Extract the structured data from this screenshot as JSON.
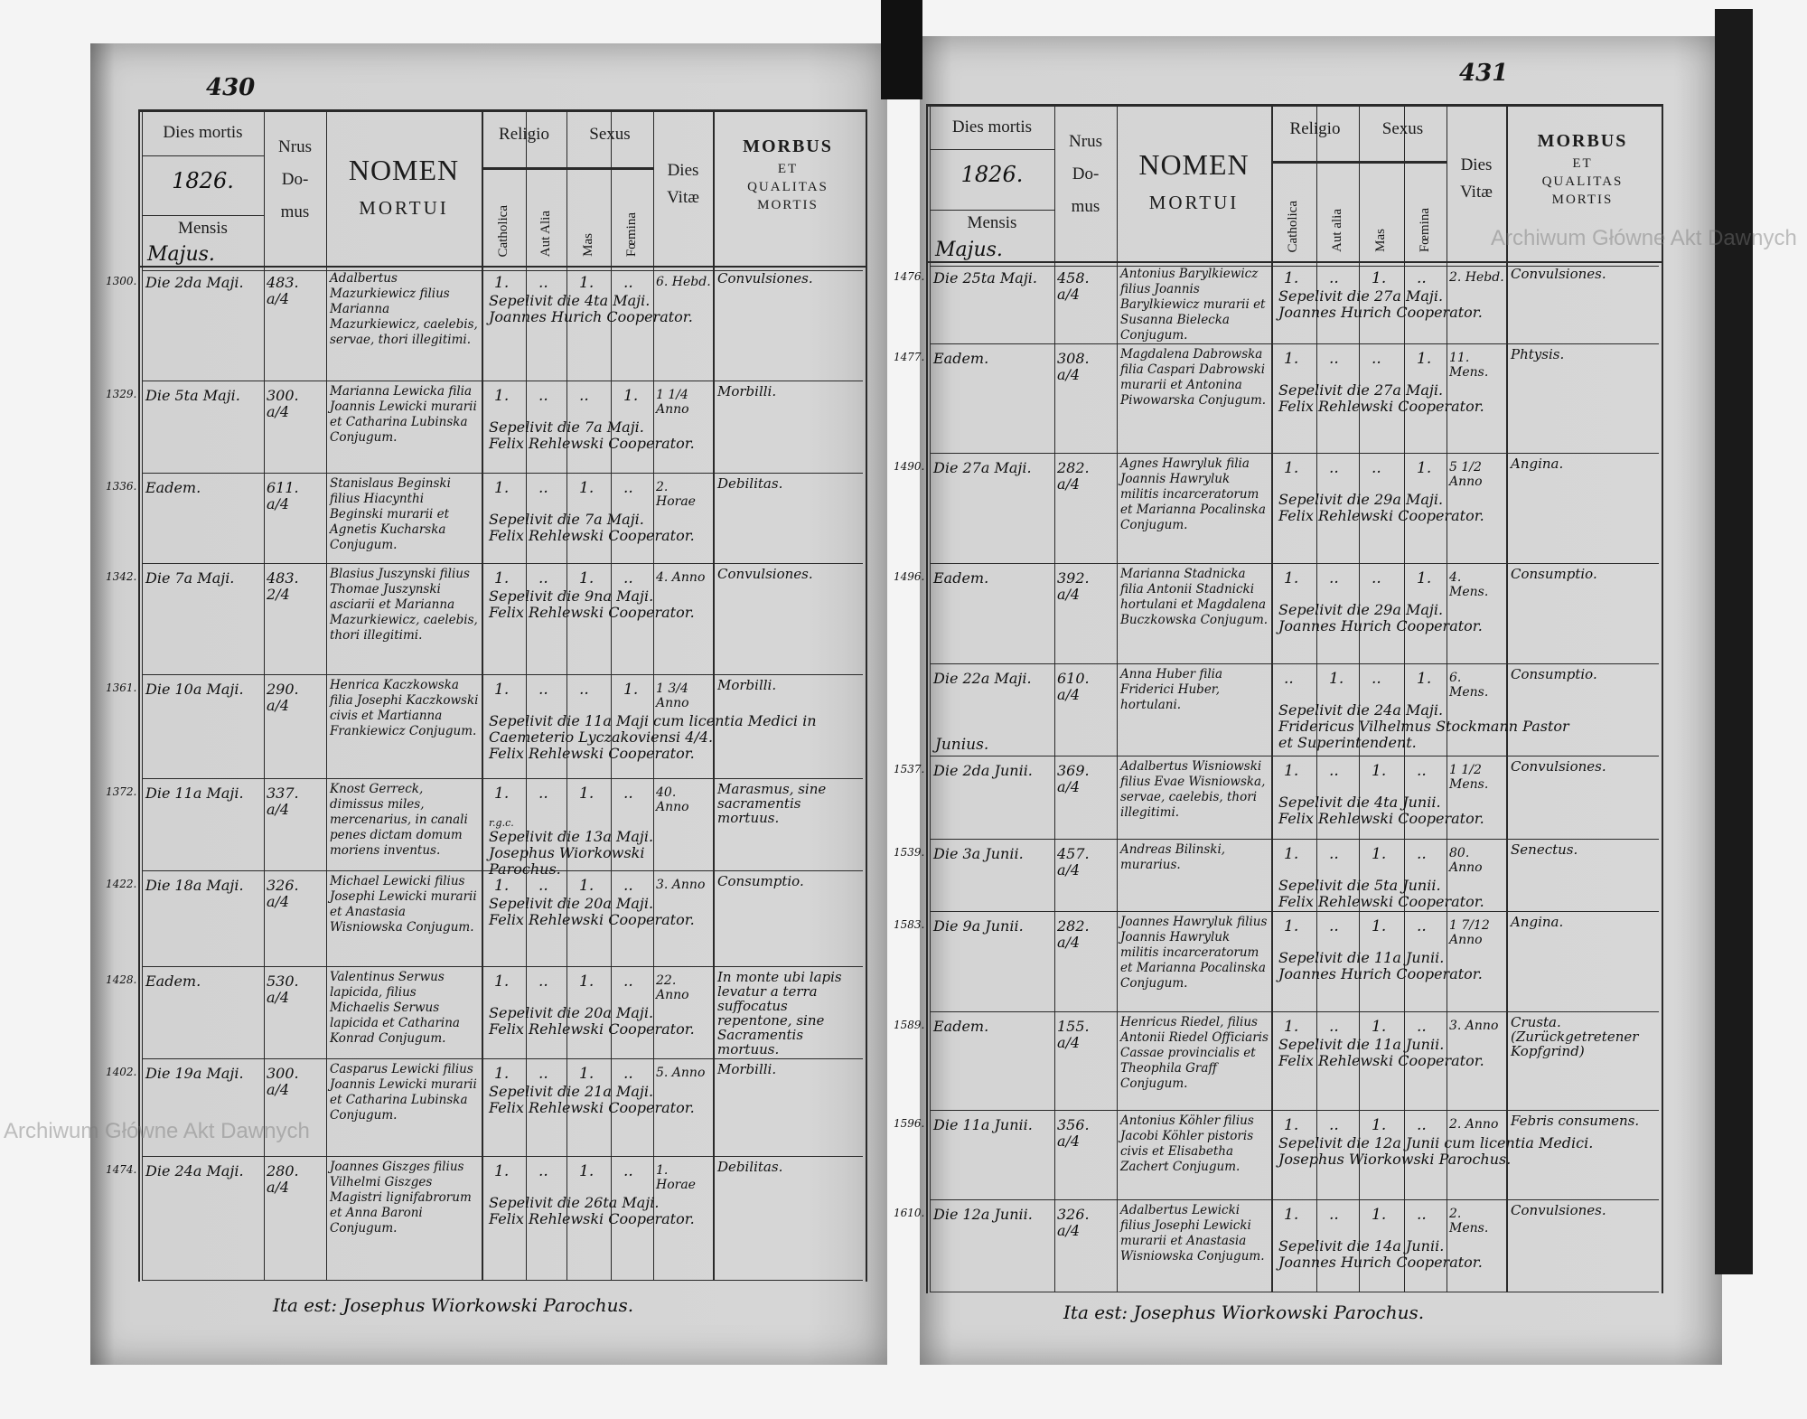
{
  "watermark": "Archiwum Główne Akt Dawnych",
  "pages": {
    "left": {
      "page_number": "430",
      "header": {
        "dies_mortis": "Dies mortis",
        "year": "1826.",
        "mensis": "Mensis",
        "month": "Majus.",
        "nrus": "Nrus",
        "do": "Do-",
        "mus": "mus",
        "nomen": "NOMEN",
        "mortui": "MORTUI",
        "religio": "Religio",
        "catholica": "Catholica",
        "aut_alia": "Aut Alia",
        "sexus": "Sexus",
        "mas": "Mas",
        "foemina": "Fœmina",
        "dies": "Dies",
        "vitae": "Vitæ",
        "morbus": "MORBUS",
        "et": "ET",
        "qualitas": "QUALITAS",
        "mortis": "MORTIS"
      },
      "entries": [
        {
          "num": "1300.",
          "date": "Die 2da Maji.",
          "domus": "483. a/4",
          "name": "Adalbertus Mazurkiewicz filius Marianna Mazurkiewicz, caelebis, servae, thori illegitimi.",
          "catholica": "1.",
          "aut_alia": "..",
          "mas": "1.",
          "foemina": "..",
          "vitae": "6. Hebd.",
          "morbus": "Convulsiones.",
          "burial": [
            "Sepelivit die 4ta Maji.",
            "Joannes Hurich Cooperator."
          ]
        },
        {
          "num": "1329.",
          "date": "Die 5ta Maji.",
          "domus": "300. a/4",
          "name": "Marianna Lewicka filia Joannis Lewicki murarii et Catharina Lubinska Conjugum.",
          "catholica": "1.",
          "aut_alia": "..",
          "mas": "..",
          "foemina": "1.",
          "vitae": "1 1/4 Anno",
          "morbus": "Morbilli.",
          "burial": [
            "Sepelivit die 7a Maji.",
            "Felix Rehlewski Cooperator."
          ]
        },
        {
          "num": "1336.",
          "date": "Eadem.",
          "domus": "611. a/4",
          "name": "Stanislaus Beginski filius Hiacynthi Beginski murarii et Agnetis Kucharska Conjugum.",
          "catholica": "1.",
          "aut_alia": "..",
          "mas": "1.",
          "foemina": "..",
          "vitae": "2. Horae",
          "morbus": "Debilitas.",
          "burial": [
            "Sepelivit die 7a Maji.",
            "Felix Rehlewski Cooperator."
          ]
        },
        {
          "num": "1342.",
          "date": "Die 7a Maji.",
          "domus": "483. 2/4",
          "name": "Blasius Juszynski filius Thomae Juszynski asciarii et Marianna Mazurkiewicz, caelebis, thori illegitimi.",
          "catholica": "1.",
          "aut_alia": "..",
          "mas": "1.",
          "foemina": "..",
          "vitae": "4. Anno",
          "morbus": "Convulsiones.",
          "burial": [
            "Sepelivit die 9na Maji.",
            "Felix Rehlewski Cooperator."
          ]
        },
        {
          "num": "1361.",
          "date": "Die 10a Maji.",
          "domus": "290. a/4",
          "name": "Henrica Kaczkowska filia Josephi Kaczkowski civis et Martianna Frankiewicz Conjugum.",
          "catholica": "1.",
          "aut_alia": "..",
          "mas": "..",
          "foemina": "1.",
          "vitae": "1 3/4 Anno",
          "morbus": "Morbilli.",
          "burial": [
            "Sepelivit die 11a Maji cum licentia Medici in Caemeterio Lyczakoviensi 4/4.",
            "Felix Rehlewski Cooperator."
          ]
        },
        {
          "num": "1372.",
          "date": "Die 11a Maji.",
          "domus": "337. a/4",
          "name": "Knost Gerreck, dimissus miles, mercenarius, in canali penes dictam domum moriens inventus.",
          "catholica": "1.",
          "aut_alia": "..",
          "mas": "1.",
          "foemina": "..",
          "vitae": "40. Anno",
          "morbus": "Marasmus, sine sacramentis mortuus.",
          "note": "r.g.c.",
          "burial": [
            "Sepelivit die 13a Maji.",
            "Josephus Wiorkowski Parochus."
          ]
        },
        {
          "num": "1422.",
          "date": "Die 18a Maji.",
          "domus": "326. a/4",
          "name": "Michael Lewicki filius Josephi Lewicki murarii et Anastasia Wisniowska Conjugum.",
          "catholica": "1.",
          "aut_alia": "..",
          "mas": "1.",
          "foemina": "..",
          "vitae": "3. Anno",
          "morbus": "Consumptio.",
          "burial": [
            "Sepelivit die 20a Maji.",
            "Felix Rehlewski Cooperator."
          ]
        },
        {
          "num": "1428.",
          "date": "Eadem.",
          "domus": "530. a/4",
          "name": "Valentinus Serwus lapicida, filius Michaelis Serwus lapicida et Catharina Konrad Conjugum.",
          "catholica": "1.",
          "aut_alia": "..",
          "mas": "1.",
          "foemina": "..",
          "vitae": "22. Anno",
          "morbus": "In monte ubi lapis levatur a terra suffocatus repentone, sine Sacramentis mortuus.",
          "burial": [
            "Sepelivit die 20a Maji.",
            "Felix Rehlewski Cooperator."
          ]
        },
        {
          "num": "1402.",
          "date": "Die 19a Maji.",
          "domus": "300. a/4",
          "name": "Casparus Lewicki filius Joannis Lewicki murarii et Catharina Lubinska Conjugum.",
          "catholica": "1.",
          "aut_alia": "..",
          "mas": "1.",
          "foemina": "..",
          "vitae": "5. Anno",
          "morbus": "Morbilli.",
          "burial": [
            "Sepelivit die 21a Maji.",
            "Felix Rehlewski Cooperator."
          ]
        },
        {
          "num": "1474.",
          "date": "Die 24a Maji.",
          "domus": "280. a/4",
          "name": "Joannes Giszges filius Vilhelmi Giszges Magistri lignifabrorum et Anna Baroni Conjugum.",
          "catholica": "1.",
          "aut_alia": "..",
          "mas": "1.",
          "foemina": "..",
          "vitae": "1. Horae",
          "morbus": "Debilitas.",
          "burial": [
            "Sepelivit die 26ta Maji.",
            "Felix Rehlewski Cooperator."
          ]
        }
      ],
      "signature": "Ita est: Josephus Wiorkowski Parochus."
    },
    "right": {
      "page_number": "431",
      "header": {
        "dies_mortis": "Dies mortis",
        "year": "1826.",
        "mensis": "Mensis",
        "month": "Majus.",
        "nrus": "Nrus",
        "do": "Do-",
        "mus": "mus",
        "nomen": "NOMEN",
        "mortui": "MORTUI",
        "religio": "Religio",
        "catholica": "Catholica",
        "aut_alia": "Aut alia",
        "sexus": "Sexus",
        "mas": "Mas",
        "foemina": "Fœmina",
        "dies": "Dies",
        "vitae": "Vitæ",
        "morbus": "MORBUS",
        "et": "ET",
        "qualitas": "QUALITAS",
        "mortis": "MORTIS"
      },
      "entries": [
        {
          "num": "1476.",
          "date": "Die 25ta Maji.",
          "domus": "458. a/4",
          "name": "Antonius Barylkiewicz filius Joannis Barylkiewicz murarii et Susanna Bielecka Conjugum.",
          "catholica": "1.",
          "aut_alia": "..",
          "mas": "1.",
          "foemina": "..",
          "vitae": "2. Hebd.",
          "morbus": "Convulsiones.",
          "burial": [
            "Sepelivit die 27a Maji.",
            "Joannes Hurich Cooperator."
          ]
        },
        {
          "num": "1477.",
          "date": "Eadem.",
          "domus": "308. a/4",
          "name": "Magdalena Dabrowska filia Caspari Dabrowski murarii et Antonina Piwowarska Conjugum.",
          "catholica": "1.",
          "aut_alia": "..",
          "mas": "..",
          "foemina": "1.",
          "vitae": "11. Mens.",
          "morbus": "Phtysis.",
          "burial": [
            "Sepelivit die 27a Maji.",
            "Felix Rehlewski Cooperator."
          ]
        },
        {
          "num": "1490.",
          "date": "Die 27a Maji.",
          "domus": "282. a/4",
          "name": "Agnes Hawryluk filia Joannis Hawryluk militis incarceratorum et Marianna Pocalinska Conjugum.",
          "catholica": "1.",
          "aut_alia": "..",
          "mas": "..",
          "foemina": "1.",
          "vitae": "5 1/2 Anno",
          "morbus": "Angina.",
          "burial": [
            "Sepelivit die 29a Maji.",
            "Felix Rehlewski Cooperator."
          ]
        },
        {
          "num": "1496.",
          "date": "Eadem.",
          "domus": "392. a/4",
          "name": "Marianna Stadnicka filia Antonii Stadnicki hortulani et Magdalena Buczkowska Conjugum.",
          "catholica": "1.",
          "aut_alia": "..",
          "mas": "..",
          "foemina": "1.",
          "vitae": "4. Mens.",
          "morbus": "Consumptio.",
          "burial": [
            "Sepelivit die 29a Maji.",
            "Joannes Hurich Cooperator."
          ]
        },
        {
          "num": "",
          "date": "Die 22a Maji.",
          "domus": "610. a/4",
          "name": "Anna Huber filia Friderici Huber, hortulani.",
          "catholica": "..",
          "aut_alia": "1.",
          "mas": "..",
          "foemina": "1.",
          "vitae": "6. Mens.",
          "morbus": "Consumptio.",
          "burial": [
            "Sepelivit die 24a Maji.",
            "Fridericus Vilhelmus Stockmann Pastor",
            "et Superintendent."
          ]
        },
        {
          "num": "1537.",
          "month_label": "Junius.",
          "date": "Die 2da Junii.",
          "domus": "369. a/4",
          "name": "Adalbertus Wisniowski filius Evae Wisniowska, servae, caelebis, thori illegitimi.",
          "catholica": "1.",
          "aut_alia": "..",
          "mas": "1.",
          "foemina": "..",
          "vitae": "1 1/2 Mens.",
          "morbus": "Convulsiones.",
          "burial": [
            "Sepelivit die 4ta Junii.",
            "Felix Rehlewski Cooperator."
          ]
        },
        {
          "num": "1539.",
          "date": "Die 3a Junii.",
          "domus": "457. a/4",
          "name": "Andreas Bilinski, murarius.",
          "catholica": "1.",
          "aut_alia": "..",
          "mas": "1.",
          "foemina": "..",
          "vitae": "80. Anno",
          "morbus": "Senectus.",
          "burial": [
            "Sepelivit die 5ta Junii.",
            "Felix Rehlewski Cooperator."
          ]
        },
        {
          "num": "1583.",
          "date": "Die 9a Junii.",
          "domus": "282. a/4",
          "name": "Joannes Hawryluk filius Joannis Hawryluk militis incarceratorum et Marianna Pocalinska Conjugum.",
          "catholica": "1.",
          "aut_alia": "..",
          "mas": "1.",
          "foemina": "..",
          "vitae": "1 7/12 Anno",
          "morbus": "Angina.",
          "burial": [
            "Sepelivit die 11a Junii.",
            "Joannes Hurich Cooperator."
          ]
        },
        {
          "num": "1589.",
          "date": "Eadem.",
          "domus": "155. a/4",
          "name": "Henricus Riedel, filius Antonii Riedel Officiaris Cassae provincialis et Theophila Graff Conjugum.",
          "catholica": "1.",
          "aut_alia": "..",
          "mas": "1.",
          "foemina": "..",
          "vitae": "3. Anno",
          "morbus": "Crusta. (Zurückgetretener Kopfgrind)",
          "burial": [
            "Sepelivit die 11a Junii.",
            "Felix Rehlewski Cooperator."
          ]
        },
        {
          "num": "1596.",
          "date": "Die 11a Junii.",
          "domus": "356. a/4",
          "name": "Antonius Köhler filius Jacobi Köhler pistoris civis et Elisabetha Zachert Conjugum.",
          "catholica": "1.",
          "aut_alia": "..",
          "mas": "1.",
          "foemina": "..",
          "vitae": "2. Anno",
          "morbus": "Febris consumens.",
          "burial": [
            "Sepelivit die 12a Junii cum licentia Medici.",
            "Josephus Wiorkowski Parochus."
          ]
        },
        {
          "num": "1610.",
          "date": "Die 12a Junii.",
          "domus": "326. a/4",
          "name": "Adalbertus Lewicki filius Josephi Lewicki murarii et Anastasia Wisniowska Conjugum.",
          "catholica": "1.",
          "aut_alia": "..",
          "mas": "1.",
          "foemina": "..",
          "vitae": "2. Mens.",
          "morbus": "Convulsiones.",
          "burial": [
            "Sepelivit die 14a Junii.",
            "Joannes Hurich Cooperator."
          ]
        }
      ],
      "signature": "Ita est: Josephus Wiorkowski Parochus."
    }
  }
}
